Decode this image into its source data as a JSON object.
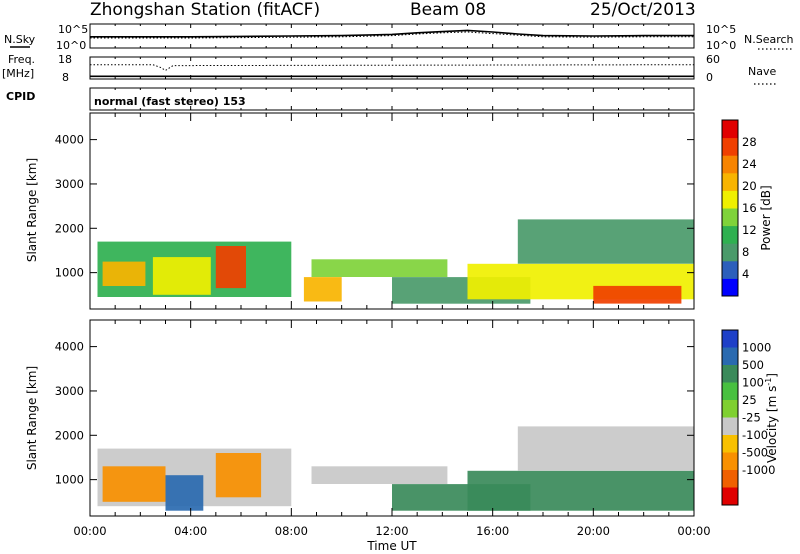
{
  "header": {
    "station": "Zhongshan Station (fitACF)",
    "beam": "Beam 08",
    "date": "25/Oct/2013"
  },
  "chart_data": [
    {
      "type": "line",
      "panel": "noise",
      "labels_left": {
        "top": "N.Sky",
        "scale_top": "10^5",
        "scale_bottom": "10^0"
      },
      "labels_right": {
        "top": "N.Search",
        "scale_top": "10^5",
        "scale_bottom": "10^0"
      },
      "x_hours": [
        0,
        2,
        4,
        6,
        8,
        10,
        12,
        13,
        14,
        15,
        16,
        17,
        18,
        20,
        22,
        24
      ],
      "series": [
        {
          "key": "sky",
          "style": "solid",
          "values": [
            2.3,
            2.3,
            2.3,
            2.4,
            2.5,
            2.6,
            2.9,
            3.3,
            3.6,
            3.9,
            3.5,
            3.0,
            2.6,
            2.5,
            2.6,
            2.6
          ]
        },
        {
          "key": "search",
          "style": "dotted",
          "values": [
            2.0,
            2.0,
            2.0,
            2.1,
            2.2,
            2.3,
            2.6,
            3.0,
            3.3,
            3.5,
            3.1,
            2.7,
            2.3,
            2.2,
            2.3,
            2.3
          ]
        }
      ]
    },
    {
      "type": "line",
      "panel": "frequency",
      "labels_left": {
        "top": "Freq.",
        "unit": "[MHz]",
        "scale_top": "18",
        "scale_bottom": "8",
        "cpid_label": "CPID"
      },
      "labels_right": {
        "top": "Nave",
        "scale_top": "60",
        "scale_bottom": "0"
      },
      "x_hours": [
        0,
        2.5,
        2.8,
        3.0,
        3.3,
        24
      ],
      "series": [
        {
          "key": "freq",
          "style": "solid",
          "values": [
            8.4,
            8.4,
            8.4,
            8.4,
            8.4,
            8.4
          ]
        },
        {
          "key": "nave",
          "style": "dotted",
          "values": [
            41,
            41,
            32,
            22,
            38,
            41
          ]
        }
      ],
      "cpid_text": "normal (fast stereo) 153"
    },
    {
      "type": "heatmap",
      "panel": "power",
      "ylabel": "Slant Range [km]",
      "yticks": [
        "1000",
        "2000",
        "3000",
        "4000"
      ],
      "ylim": [
        180,
        4600
      ],
      "colorbar": {
        "label": "Power [dB]",
        "ticks": [
          "4",
          "8",
          "12",
          "16",
          "20",
          "24",
          "28"
        ],
        "colors": [
          "#0000ff",
          "#2c5fbc",
          "#4a9a6a",
          "#2fb050",
          "#7fd33a",
          "#f0f000",
          "#f8b400",
          "#f78400",
          "#f04000",
          "#e00000"
        ]
      },
      "regions": [
        {
          "t0": 0.3,
          "t1": 8.0,
          "r0": 450,
          "r1": 1700,
          "value": 12
        },
        {
          "t0": 0.5,
          "t1": 2.2,
          "r0": 700,
          "r1": 1250,
          "value": 20
        },
        {
          "t0": 2.5,
          "t1": 4.8,
          "r0": 500,
          "r1": 1350,
          "value": 18
        },
        {
          "t0": 5.0,
          "t1": 6.2,
          "r0": 650,
          "r1": 1600,
          "value": 26
        },
        {
          "t0": 8.8,
          "t1": 14.2,
          "r0": 900,
          "r1": 1300,
          "value": 14
        },
        {
          "t0": 8.5,
          "t1": 10.0,
          "r0": 350,
          "r1": 900,
          "value": 20
        },
        {
          "t0": 12.0,
          "t1": 17.5,
          "r0": 300,
          "r1": 900,
          "value": 8
        },
        {
          "t0": 15.0,
          "t1": 24.0,
          "r0": 400,
          "r1": 1200,
          "value": 18
        },
        {
          "t0": 17.0,
          "t1": 24.0,
          "r0": 1200,
          "r1": 2200,
          "value": 9
        },
        {
          "t0": 20.0,
          "t1": 23.5,
          "r0": 300,
          "r1": 700,
          "value": 26
        }
      ]
    },
    {
      "type": "heatmap",
      "panel": "velocity",
      "ylabel": "Slant Range [km]",
      "yticks": [
        "1000",
        "2000",
        "3000",
        "4000"
      ],
      "ylim": [
        180,
        4600
      ],
      "colorbar": {
        "label": "Velocity [m s",
        "label_sup": "-1",
        "label_end": "]",
        "ticks": [
          "1000",
          "500",
          "100",
          "25",
          "-25",
          "-100",
          "-500",
          "-1000"
        ],
        "colors": [
          "#1e40c8",
          "#2a6ab0",
          "#3a8a5a",
          "#48c040",
          "#7fd030",
          "#c8c8c8",
          "#f8c000",
          "#f89000",
          "#f06000",
          "#e00000"
        ]
      },
      "regions": [
        {
          "t0": 0.3,
          "t1": 8.0,
          "r0": 400,
          "r1": 1700,
          "value": 0
        },
        {
          "t0": 0.5,
          "t1": 3.0,
          "r0": 500,
          "r1": 1300,
          "value": -300
        },
        {
          "t0": 3.0,
          "t1": 4.5,
          "r0": 300,
          "r1": 1100,
          "value": 600
        },
        {
          "t0": 5.0,
          "t1": 6.8,
          "r0": 600,
          "r1": 1600,
          "value": -300
        },
        {
          "t0": 8.8,
          "t1": 14.2,
          "r0": 900,
          "r1": 1300,
          "value": 0
        },
        {
          "t0": 12.0,
          "t1": 17.5,
          "r0": 300,
          "r1": 900,
          "value": 200
        },
        {
          "t0": 15.0,
          "t1": 24.0,
          "r0": 300,
          "r1": 1200,
          "value": 200
        },
        {
          "t0": 17.0,
          "t1": 24.0,
          "r0": 1200,
          "r1": 2200,
          "value": 0
        }
      ]
    }
  ],
  "time_axis": {
    "xlabel": "Time UT",
    "ticks": [
      "00:00",
      "04:00",
      "08:00",
      "12:00",
      "16:00",
      "20:00",
      "00:00"
    ],
    "xlim_hours": [
      0,
      24
    ]
  }
}
